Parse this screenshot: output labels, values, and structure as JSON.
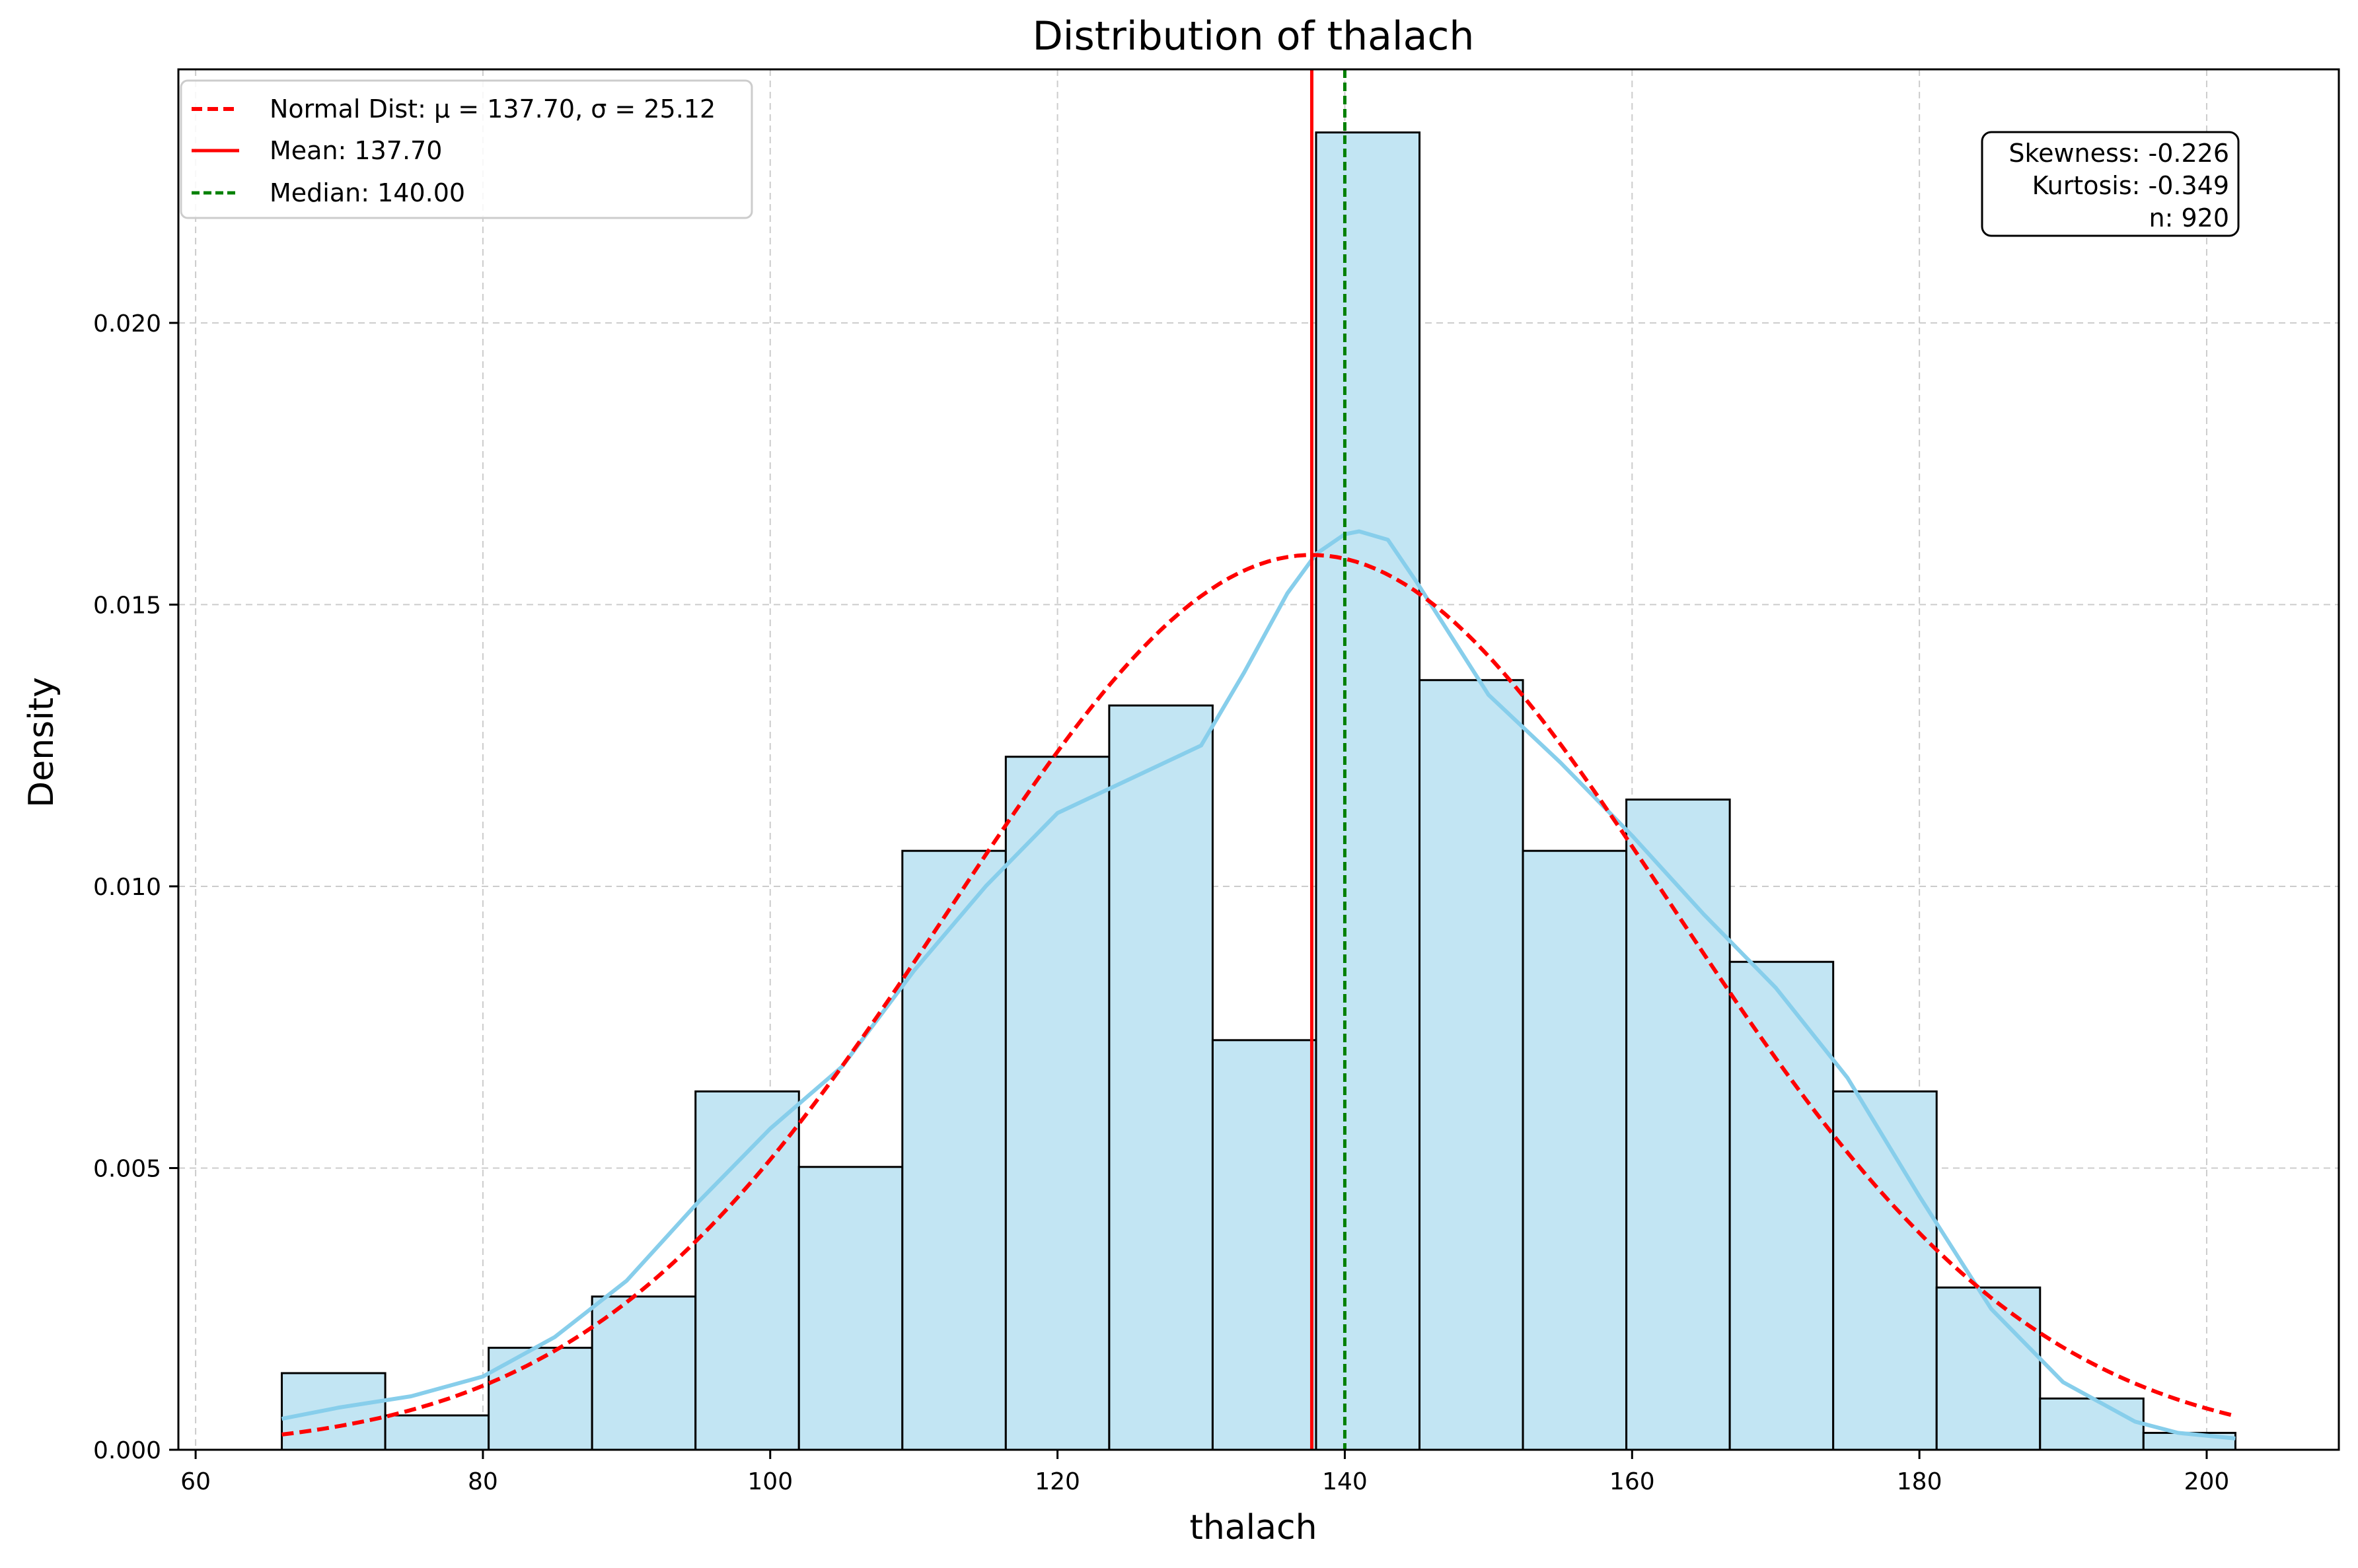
{
  "chart_data": {
    "type": "bar",
    "title": "Distribution of thalach",
    "xlabel": "thalach",
    "ylabel": "Density",
    "xlim": [
      58.8,
      209.2
    ],
    "ylim": [
      0,
      0.0245
    ],
    "xticks": [
      60,
      80,
      100,
      120,
      140,
      160,
      180,
      200
    ],
    "xtick_labels": [
      "60",
      "80",
      "100",
      "120",
      "140",
      "160",
      "180",
      "200"
    ],
    "yticks": [
      0,
      0.005,
      0.01,
      0.015,
      0.02
    ],
    "ytick_labels": [
      "0.000",
      "0.005",
      "0.010",
      "0.015",
      "0.020"
    ],
    "grid": true,
    "bins": {
      "edges": [
        66.0,
        73.2,
        80.4,
        87.6,
        94.8,
        102.0,
        109.2,
        116.4,
        123.6,
        130.8,
        138.0,
        145.2,
        152.4,
        159.6,
        166.8,
        174.0,
        181.2,
        188.4,
        195.6,
        202.0
      ],
      "values": [
        0.00136,
        0.00061,
        0.00181,
        0.00272,
        0.00636,
        0.00502,
        0.01063,
        0.0123,
        0.01321,
        0.00727,
        0.02338,
        0.01366,
        0.01063,
        0.01154,
        0.00866,
        0.00636,
        0.00288,
        0.00091,
        0.0003
      ],
      "fill": "#c2e5f3",
      "edge": "#000000"
    },
    "kde": {
      "color": "#87ceeb",
      "x": [
        66,
        70,
        75,
        80,
        85,
        90,
        95,
        100,
        105,
        110,
        115,
        120,
        125,
        130,
        133,
        136,
        138,
        140,
        141,
        143,
        145,
        150,
        155,
        160,
        165,
        170,
        175,
        180,
        185,
        190,
        195,
        198,
        202
      ],
      "y": [
        0.00055,
        0.00075,
        0.00095,
        0.0013,
        0.002,
        0.003,
        0.0044,
        0.0057,
        0.0068,
        0.0085,
        0.01,
        0.0113,
        0.0119,
        0.0125,
        0.0138,
        0.0152,
        0.0159,
        0.01625,
        0.0163,
        0.01615,
        0.0154,
        0.0134,
        0.0122,
        0.0109,
        0.0095,
        0.0082,
        0.0066,
        0.0045,
        0.0025,
        0.0012,
        0.0005,
        0.0003,
        0.0002
      ]
    },
    "normal": {
      "label": "Normal Dist: μ = 137.70, σ = 25.12",
      "mu": 137.7,
      "sigma": 25.12,
      "color": "#ff0000"
    },
    "mean_line": {
      "label": "Mean: 137.70",
      "x": 137.7,
      "color": "#ff0000"
    },
    "median_line": {
      "label": "Median: 140.00",
      "x": 140.0,
      "color": "#008000"
    },
    "legend": {
      "placement": "top-left"
    },
    "stats": {
      "placement": "top-right",
      "lines": [
        "Skewness: -0.226",
        "Kurtosis: -0.349",
        "n: 920"
      ]
    }
  }
}
